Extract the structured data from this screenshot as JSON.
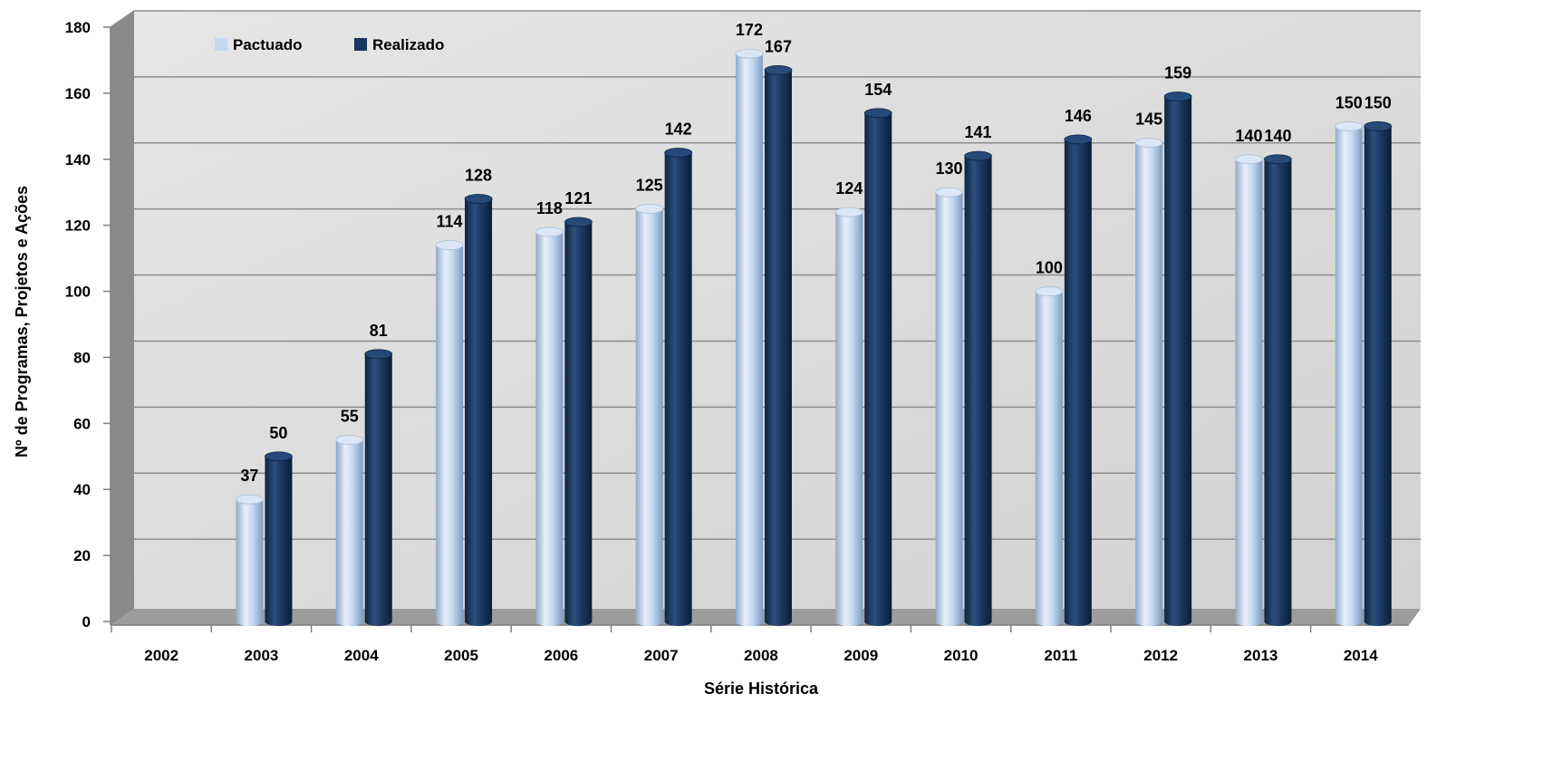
{
  "chart_data": {
    "type": "bar",
    "title": "",
    "xlabel": "Série Histórica",
    "ylabel": "Nº de Programas, Projetos e Ações",
    "ylim": [
      0,
      180
    ],
    "yticks": [
      0,
      20,
      40,
      60,
      80,
      100,
      120,
      140,
      160,
      180
    ],
    "grid": true,
    "legend_position": "top-left",
    "categories": [
      "2002",
      "2003",
      "2004",
      "2005",
      "2006",
      "2007",
      "2008",
      "2009",
      "2010",
      "2011",
      "2012",
      "2013",
      "2014"
    ],
    "series": [
      {
        "name": "Pactuado",
        "color": "#c5d9f1",
        "values": [
          null,
          37,
          55,
          114,
          118,
          125,
          172,
          124,
          130,
          100,
          145,
          140,
          150
        ]
      },
      {
        "name": "Realizado",
        "color": "#17375e",
        "values": [
          null,
          50,
          81,
          128,
          121,
          142,
          167,
          154,
          141,
          146,
          159,
          140,
          150
        ]
      }
    ]
  }
}
